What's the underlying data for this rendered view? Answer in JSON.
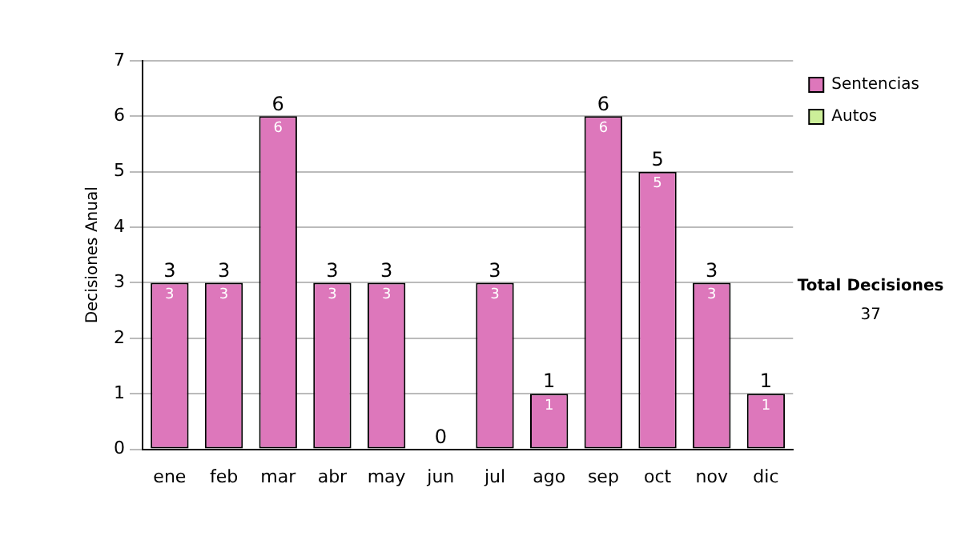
{
  "chart_data": {
    "type": "bar",
    "stacked": true,
    "categories": [
      "ene",
      "feb",
      "mar",
      "abr",
      "may",
      "jun",
      "jul",
      "ago",
      "sep",
      "oct",
      "nov",
      "dic"
    ],
    "series": [
      {
        "name": "Sentencias",
        "color": "#dd77bb",
        "values": [
          3,
          3,
          6,
          3,
          3,
          0,
          3,
          1,
          6,
          5,
          3,
          1
        ],
        "value_labels": [
          "3",
          "3",
          "6",
          "3",
          "3",
          null,
          "3",
          "1",
          "6",
          "5",
          "3",
          "1"
        ]
      },
      {
        "name": "Autos",
        "color": "#ccee99",
        "values": [
          0,
          0,
          0,
          0,
          0,
          0,
          0,
          0,
          0,
          0,
          0,
          0
        ]
      }
    ],
    "totals": [
      "3",
      "3",
      "6",
      "3",
      "3",
      "0",
      "3",
      "1",
      "6",
      "5",
      "3",
      "1"
    ],
    "ylabel": "Decisiones Anual",
    "ylim": [
      0,
      7
    ],
    "yticks": [
      0,
      1,
      2,
      3,
      4,
      5,
      6,
      7
    ],
    "grid": "y",
    "legend": "right",
    "annotations": [
      "Total Decisiones",
      "37"
    ]
  }
}
